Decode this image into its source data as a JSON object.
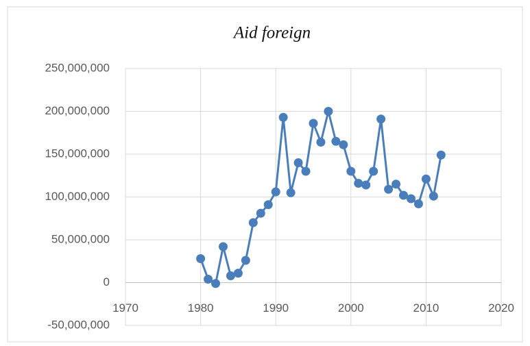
{
  "chart_data": {
    "type": "line",
    "title": "Aid foreign",
    "color": "#4a7ebb",
    "grid": true,
    "x": [
      1980,
      1981,
      1982,
      1983,
      1984,
      1985,
      1986,
      1987,
      1988,
      1989,
      1990,
      1991,
      1992,
      1993,
      1994,
      1995,
      1996,
      1997,
      1998,
      1999,
      2000,
      2001,
      2002,
      2003,
      2004,
      2005,
      2006,
      2007,
      2008,
      2009,
      2010,
      2011,
      2012
    ],
    "values": [
      28000000,
      4000000,
      -1000000,
      42000000,
      8000000,
      11000000,
      26000000,
      70000000,
      81000000,
      91000000,
      106000000,
      193000000,
      105000000,
      140000000,
      130000000,
      186000000,
      164000000,
      200000000,
      165000000,
      161000000,
      130000000,
      116000000,
      114000000,
      130000000,
      191000000,
      109000000,
      115000000,
      102000000,
      98000000,
      92000000,
      121000000,
      101000000,
      149000000
    ],
    "xlim": [
      1970,
      2020
    ],
    "xticks": [
      1970,
      1980,
      1990,
      2000,
      2010,
      2020
    ],
    "ylim": [
      -50000000,
      250000000
    ],
    "yticks": [
      {
        "value": -50000000,
        "label": "-50,000,000"
      },
      0,
      {
        "value": 50000000,
        "label": "50,000,000"
      },
      {
        "value": 100000000,
        "label": "100,000,000"
      },
      {
        "value": 150000000,
        "label": "150,000,000"
      },
      {
        "value": 200000000,
        "label": "200,000,000"
      },
      {
        "value": 250000000,
        "label": "250,000,000"
      }
    ]
  }
}
